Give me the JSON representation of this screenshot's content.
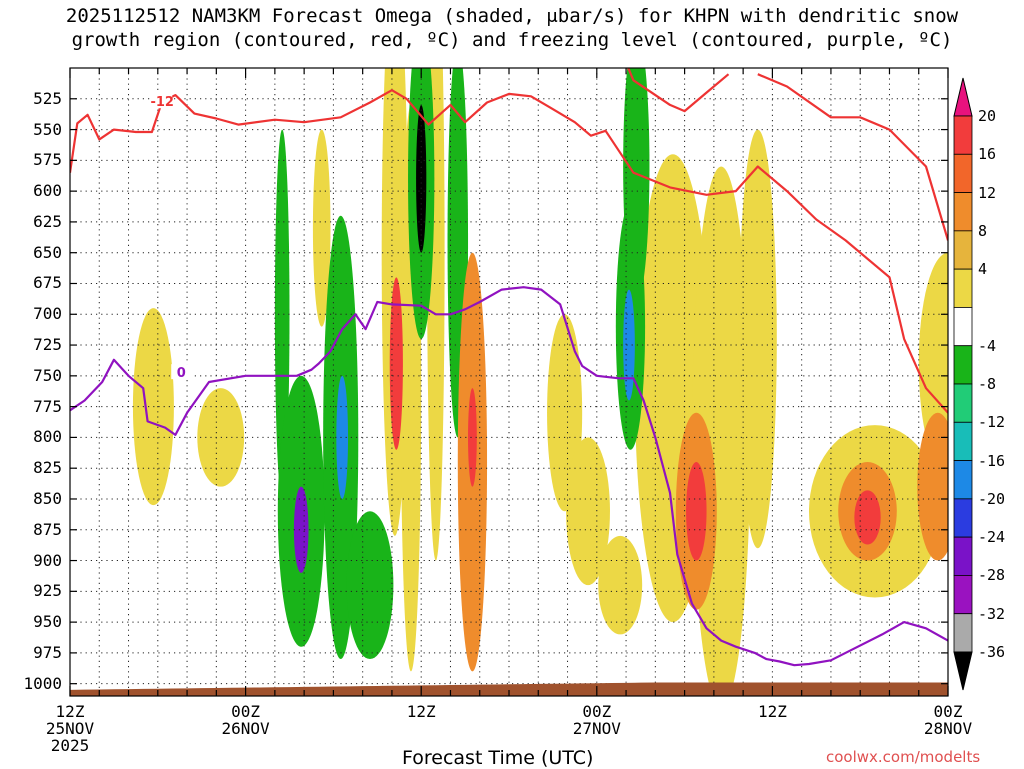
{
  "title_line1": "2025112512 NAM3KM Forecast Omega (shaded, μbar/s) for KHPN with dendritic snow",
  "title_line2": "growth region (contoured, red, ºC) and freezing level (contoured, purple, ºC)",
  "x_axis_title": "Forecast Time (UTC)",
  "credit": "coolwx.com/modelts",
  "chart_data": {
    "type": "heatmap",
    "x_ticks": [
      {
        "hour": 0,
        "line1": "12Z",
        "line2": "25NOV",
        "line3": "2025"
      },
      {
        "hour": 12,
        "line1": "00Z",
        "line2": "26NOV",
        "line3": ""
      },
      {
        "hour": 24,
        "line1": "12Z",
        "line2": "",
        "line3": ""
      },
      {
        "hour": 36,
        "line1": "00Z",
        "line2": "27NOV",
        "line3": ""
      },
      {
        "hour": 48,
        "line1": "12Z",
        "line2": "",
        "line3": ""
      },
      {
        "hour": 60,
        "line1": "00Z",
        "line2": "28NOV",
        "line3": ""
      }
    ],
    "x_range_hours": [
      0,
      60
    ],
    "y_levels_hpa": [
      525,
      550,
      575,
      600,
      625,
      650,
      675,
      700,
      725,
      750,
      775,
      800,
      825,
      850,
      875,
      900,
      925,
      950,
      975,
      1000
    ],
    "y_range_hpa": [
      500,
      1010
    ],
    "colorbar": {
      "labels": [
        "20",
        "16",
        "12",
        "8",
        "4",
        "-4",
        "-8",
        "-12",
        "-16",
        "-20",
        "-24",
        "-28",
        "-32",
        "-36"
      ],
      "colors": [
        "#e8127e",
        "#f23c3c",
        "#f2662a",
        "#ef8c2c",
        "#e6b43c",
        "#ecd845",
        "#ffffff",
        "#19b419",
        "#21cc77",
        "#18bdb8",
        "#1d89e6",
        "#2b3ce0",
        "#7a12c8",
        "#9a12c0",
        "#aaaaaa",
        "#000000"
      ]
    },
    "omega_blobs": [
      {
        "hour": 5.7,
        "p": 775,
        "dh": 1.4,
        "dp": 80,
        "value": 4
      },
      {
        "hour": 10.3,
        "p": 800,
        "dh": 1.6,
        "dp": 40,
        "value": 4
      },
      {
        "hour": 14.5,
        "p": 700,
        "dh": 0.5,
        "dp": 150,
        "value": -8
      },
      {
        "hour": 15.8,
        "p": 860,
        "dh": 1.6,
        "dp": 110,
        "value": -8
      },
      {
        "hour": 15.8,
        "p": 875,
        "dh": 0.5,
        "dp": 35,
        "value": -24
      },
      {
        "hour": 17.2,
        "p": 630,
        "dh": 0.6,
        "dp": 80,
        "value": 4
      },
      {
        "hour": 18.5,
        "p": 800,
        "dh": 1.2,
        "dp": 180,
        "value": -8
      },
      {
        "hour": 18.6,
        "p": 800,
        "dh": 0.4,
        "dp": 50,
        "value": -16
      },
      {
        "hour": 20.5,
        "p": 920,
        "dh": 1.6,
        "dp": 60,
        "value": -8
      },
      {
        "hour": 22.2,
        "p": 650,
        "dh": 0.9,
        "dp": 230,
        "value": 4
      },
      {
        "hour": 22.3,
        "p": 740,
        "dh": 0.45,
        "dp": 70,
        "value": 16
      },
      {
        "hour": 23.3,
        "p": 760,
        "dh": 0.7,
        "dp": 230,
        "value": 4
      },
      {
        "hour": 24.0,
        "p": 590,
        "dh": 0.9,
        "dp": 130,
        "value": -8
      },
      {
        "hour": 24.0,
        "p": 590,
        "dh": 0.35,
        "dp": 60,
        "value": -36
      },
      {
        "hour": 25.0,
        "p": 650,
        "dh": 0.6,
        "dp": 250,
        "value": 4
      },
      {
        "hour": 26.5,
        "p": 640,
        "dh": 0.7,
        "dp": 160,
        "value": -8
      },
      {
        "hour": 27.5,
        "p": 820,
        "dh": 1.0,
        "dp": 170,
        "value": 8
      },
      {
        "hour": 27.5,
        "p": 800,
        "dh": 0.3,
        "dp": 40,
        "value": 16
      },
      {
        "hour": 33.8,
        "p": 780,
        "dh": 1.2,
        "dp": 80,
        "value": 4
      },
      {
        "hour": 35.4,
        "p": 860,
        "dh": 1.5,
        "dp": 60,
        "value": 4
      },
      {
        "hour": 37.6,
        "p": 920,
        "dh": 1.5,
        "dp": 40,
        "value": 4
      },
      {
        "hour": 38.3,
        "p": 710,
        "dh": 1.0,
        "dp": 100,
        "value": -8
      },
      {
        "hour": 38.2,
        "p": 725,
        "dh": 0.4,
        "dp": 45,
        "value": -16
      },
      {
        "hour": 38.7,
        "p": 580,
        "dh": 0.9,
        "dp": 110,
        "value": -8
      },
      {
        "hour": 41.2,
        "p": 760,
        "dh": 2.6,
        "dp": 190,
        "value": 4
      },
      {
        "hour": 42.8,
        "p": 860,
        "dh": 1.4,
        "dp": 80,
        "value": 8
      },
      {
        "hour": 42.8,
        "p": 860,
        "dh": 0.7,
        "dp": 40,
        "value": 16
      },
      {
        "hour": 44.5,
        "p": 800,
        "dh": 2.0,
        "dp": 220,
        "value": 4
      },
      {
        "hour": 47.0,
        "p": 720,
        "dh": 1.3,
        "dp": 170,
        "value": 4
      },
      {
        "hour": 55.0,
        "p": 860,
        "dh": 4.5,
        "dp": 70,
        "value": 4
      },
      {
        "hour": 54.5,
        "p": 860,
        "dh": 2.0,
        "dp": 40,
        "value": 8
      },
      {
        "hour": 54.5,
        "p": 865,
        "dh": 0.9,
        "dp": 22,
        "value": 16
      },
      {
        "hour": 59.3,
        "p": 840,
        "dh": 1.4,
        "dp": 60,
        "value": 8
      },
      {
        "hour": 60.0,
        "p": 740,
        "dh": 2.0,
        "dp": 90,
        "value": 4
      }
    ],
    "dgz_contours": [
      {
        "label": "-12",
        "label_at": [
          6.3,
          527
        ],
        "points": [
          [
            0,
            585
          ],
          [
            0.5,
            545
          ],
          [
            1.2,
            538
          ],
          [
            2.0,
            558
          ],
          [
            3.0,
            550
          ],
          [
            4.5,
            552
          ],
          [
            5.6,
            552
          ],
          [
            6.3,
            527
          ],
          [
            7.2,
            522
          ],
          [
            8.5,
            537
          ],
          [
            10.0,
            541
          ],
          [
            11.5,
            546
          ],
          [
            14.0,
            542
          ],
          [
            16.0,
            544
          ],
          [
            18.5,
            540
          ],
          [
            20.5,
            528
          ],
          [
            22.0,
            518
          ],
          [
            23.0,
            525
          ],
          [
            24.5,
            546
          ],
          [
            26.0,
            530
          ],
          [
            27.0,
            544
          ],
          [
            28.5,
            528
          ],
          [
            30.0,
            521
          ],
          [
            31.5,
            523
          ],
          [
            32.8,
            532
          ],
          [
            34.5,
            544
          ],
          [
            35.6,
            555
          ],
          [
            36.6,
            551
          ],
          [
            38.5,
            585
          ],
          [
            41.0,
            597
          ],
          [
            43.5,
            603
          ],
          [
            45.5,
            600
          ],
          [
            47.0,
            580
          ],
          [
            49.0,
            600
          ],
          [
            51.0,
            623
          ],
          [
            53.0,
            640
          ],
          [
            56.0,
            670
          ],
          [
            57.0,
            720
          ],
          [
            58.5,
            760
          ],
          [
            60.0,
            780
          ]
        ]
      },
      {
        "label": "",
        "label_at": null,
        "points": [
          [
            47.0,
            505
          ],
          [
            49.0,
            515
          ],
          [
            52.0,
            540
          ],
          [
            54.0,
            540
          ],
          [
            56.0,
            550
          ],
          [
            58.5,
            580
          ],
          [
            60.0,
            640
          ]
        ]
      },
      {
        "label": "",
        "label_at": null,
        "points": [
          [
            37.8,
            490
          ],
          [
            38.5,
            510
          ],
          [
            41.0,
            530
          ],
          [
            42.0,
            535
          ],
          [
            43.5,
            520
          ],
          [
            45.0,
            505
          ]
        ]
      }
    ],
    "freezing_contours": [
      {
        "label": "0",
        "label_at": [
          7.6,
          747
        ],
        "points": [
          [
            0,
            778
          ],
          [
            1.0,
            770
          ],
          [
            2.2,
            755
          ],
          [
            3.0,
            737
          ],
          [
            4.0,
            750
          ],
          [
            5.0,
            760
          ],
          [
            5.3,
            787
          ],
          [
            6.5,
            792
          ],
          [
            7.2,
            798
          ],
          [
            8.0,
            780
          ],
          [
            9.5,
            755
          ],
          [
            12.0,
            750
          ],
          [
            14.0,
            750
          ],
          [
            15.5,
            750
          ],
          [
            16.5,
            745
          ],
          [
            17.0,
            740
          ],
          [
            17.8,
            730
          ],
          [
            18.6,
            712
          ],
          [
            19.5,
            700
          ],
          [
            20.2,
            712
          ],
          [
            21.0,
            690
          ],
          [
            22.0,
            692
          ],
          [
            24.0,
            693
          ],
          [
            25.0,
            700
          ],
          [
            26.0,
            700
          ],
          [
            27.0,
            696
          ],
          [
            28.0,
            690
          ],
          [
            29.5,
            680
          ],
          [
            31.0,
            678
          ],
          [
            32.2,
            680
          ],
          [
            33.5,
            692
          ],
          [
            34.5,
            730
          ],
          [
            35.0,
            742
          ],
          [
            36.0,
            750
          ],
          [
            37.5,
            752
          ],
          [
            38.5,
            752
          ],
          [
            39.2,
            770
          ],
          [
            40.0,
            800
          ],
          [
            41.0,
            845
          ],
          [
            41.5,
            895
          ],
          [
            42.5,
            935
          ],
          [
            43.5,
            955
          ],
          [
            44.5,
            965
          ],
          [
            45.5,
            970
          ],
          [
            46.8,
            975
          ],
          [
            47.6,
            980
          ],
          [
            48.5,
            982
          ],
          [
            49.5,
            985
          ],
          [
            50.5,
            984
          ],
          [
            52.0,
            981
          ],
          [
            53.5,
            972
          ],
          [
            55.5,
            960
          ],
          [
            57.0,
            950
          ],
          [
            58.5,
            955
          ],
          [
            60.0,
            965
          ]
        ]
      }
    ],
    "surface_terrain_color": "#a0522d",
    "label_colors": {
      "dgz": "#ee3333",
      "freezing": "#9012c0"
    }
  }
}
